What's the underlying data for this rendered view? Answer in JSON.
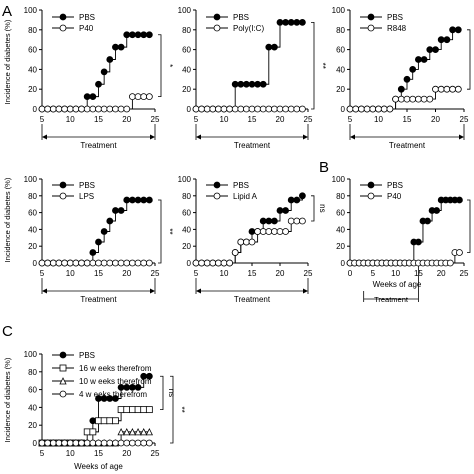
{
  "panel_letters": [
    "A",
    "B",
    "C"
  ],
  "shared": {
    "ylabel": "Incidence of diabetes (%)",
    "xlabel": "Weeks of age",
    "treatment_label": "Treatment",
    "y_ticks": [
      0,
      20,
      40,
      60,
      80,
      100
    ],
    "x_ticks": [
      5,
      10,
      15,
      20,
      25
    ],
    "x_ticks_B": [
      0,
      5,
      10,
      15,
      20,
      25
    ]
  },
  "chart_data": [
    {
      "type": "line",
      "panel": "A1",
      "xlim": [
        5,
        25
      ],
      "ylim": [
        0,
        100
      ],
      "xlabel": "Weeks of age",
      "ylabel": "Incidence of diabetes (%)",
      "series": [
        {
          "name": "PBS",
          "marker": "filled-circle",
          "x": [
            5,
            6,
            7,
            8,
            9,
            10,
            11,
            12,
            13,
            14,
            15,
            16,
            17,
            18,
            19,
            20,
            21,
            22,
            23,
            24
          ],
          "y": [
            0,
            0,
            0,
            0,
            0,
            0,
            0,
            0,
            12.5,
            12.5,
            25,
            37.5,
            50,
            62.5,
            62.5,
            75,
            75,
            75,
            75,
            75
          ]
        },
        {
          "name": "P40",
          "marker": "open-circle",
          "x": [
            5,
            6,
            7,
            8,
            9,
            10,
            11,
            12,
            13,
            14,
            15,
            16,
            17,
            18,
            19,
            20,
            21,
            22,
            23,
            24
          ],
          "y": [
            0,
            0,
            0,
            0,
            0,
            0,
            0,
            0,
            0,
            0,
            0,
            0,
            0,
            0,
            0,
            0,
            12.5,
            12.5,
            12.5,
            12.5
          ]
        }
      ],
      "significance": "*"
    },
    {
      "type": "line",
      "panel": "A2",
      "xlim": [
        5,
        25
      ],
      "ylim": [
        0,
        100
      ],
      "xlabel": "Weeks of age",
      "ylabel": "Incidence of diabetes (%)",
      "series": [
        {
          "name": "PBS",
          "marker": "filled-circle",
          "x": [
            5,
            6,
            7,
            8,
            9,
            10,
            11,
            12,
            13,
            14,
            15,
            16,
            17,
            18,
            19,
            20,
            21,
            22,
            23,
            24
          ],
          "y": [
            0,
            0,
            0,
            0,
            0,
            0,
            0,
            25,
            25,
            25,
            25,
            25,
            25,
            62.5,
            62.5,
            87.5,
            87.5,
            87.5,
            87.5,
            87.5
          ]
        },
        {
          "name": "Poly(I:C)",
          "marker": "open-circle",
          "x": [
            5,
            6,
            7,
            8,
            9,
            10,
            11,
            12,
            13,
            14,
            15,
            16,
            17,
            18,
            19,
            20,
            21,
            22,
            23,
            24
          ],
          "y": [
            0,
            0,
            0,
            0,
            0,
            0,
            0,
            0,
            0,
            0,
            0,
            0,
            0,
            0,
            0,
            0,
            0,
            0,
            0,
            0
          ]
        }
      ],
      "significance": "**"
    },
    {
      "type": "line",
      "panel": "A3",
      "xlim": [
        5,
        25
      ],
      "ylim": [
        0,
        100
      ],
      "xlabel": "Weeks of age",
      "ylabel": "Incidence of diabetes (%)",
      "series": [
        {
          "name": "PBS",
          "marker": "filled-circle",
          "x": [
            5,
            6,
            7,
            8,
            9,
            10,
            11,
            12,
            13,
            14,
            15,
            16,
            17,
            18,
            19,
            20,
            21,
            22,
            23,
            24
          ],
          "y": [
            0,
            0,
            0,
            0,
            0,
            0,
            0,
            0,
            10,
            20,
            30,
            40,
            50,
            50,
            60,
            60,
            70,
            70,
            80,
            80
          ]
        },
        {
          "name": "R848",
          "marker": "open-circle",
          "x": [
            5,
            6,
            7,
            8,
            9,
            10,
            11,
            12,
            13,
            14,
            15,
            16,
            17,
            18,
            19,
            20,
            21,
            22,
            23,
            24
          ],
          "y": [
            0,
            0,
            0,
            0,
            0,
            0,
            0,
            0,
            10,
            10,
            10,
            10,
            10,
            10,
            10,
            20,
            20,
            20,
            20,
            20
          ]
        }
      ],
      "significance": "*"
    },
    {
      "type": "line",
      "panel": "A4",
      "xlim": [
        5,
        25
      ],
      "ylim": [
        0,
        100
      ],
      "xlabel": "Weeks of age",
      "ylabel": "Incidence of diabetes (%)",
      "series": [
        {
          "name": "PBS",
          "marker": "filled-circle",
          "x": [
            5,
            6,
            7,
            8,
            9,
            10,
            11,
            12,
            13,
            14,
            15,
            16,
            17,
            18,
            19,
            20,
            21,
            22,
            23,
            24
          ],
          "y": [
            0,
            0,
            0,
            0,
            0,
            0,
            0,
            0,
            0,
            12.5,
            25,
            37.5,
            50,
            62.5,
            62.5,
            75,
            75,
            75,
            75,
            75
          ]
        },
        {
          "name": "LPS",
          "marker": "open-circle",
          "x": [
            5,
            6,
            7,
            8,
            9,
            10,
            11,
            12,
            13,
            14,
            15,
            16,
            17,
            18,
            19,
            20,
            21,
            22,
            23,
            24
          ],
          "y": [
            0,
            0,
            0,
            0,
            0,
            0,
            0,
            0,
            0,
            0,
            0,
            0,
            0,
            0,
            0,
            0,
            0,
            0,
            0,
            0
          ]
        }
      ],
      "significance": "**"
    },
    {
      "type": "line",
      "panel": "A5",
      "xlim": [
        5,
        25
      ],
      "ylim": [
        0,
        100
      ],
      "xlabel": "Weeks of age",
      "ylabel": "Incidence of diabetes (%)",
      "series": [
        {
          "name": "PBS",
          "marker": "filled-circle",
          "x": [
            5,
            6,
            7,
            8,
            9,
            10,
            11,
            12,
            13,
            14,
            15,
            16,
            17,
            18,
            19,
            20,
            21,
            22,
            23,
            24
          ],
          "y": [
            0,
            0,
            0,
            0,
            0,
            0,
            0,
            12.5,
            25,
            25,
            37.5,
            37.5,
            50,
            50,
            50,
            62.5,
            62.5,
            75,
            75,
            80
          ]
        },
        {
          "name": "Lipid A",
          "marker": "open-circle",
          "x": [
            5,
            6,
            7,
            8,
            9,
            10,
            11,
            12,
            13,
            14,
            15,
            16,
            17,
            18,
            19,
            20,
            21,
            22,
            23,
            24
          ],
          "y": [
            0,
            0,
            0,
            0,
            0,
            0,
            0,
            12.5,
            25,
            25,
            25,
            37.5,
            37.5,
            37.5,
            37.5,
            37.5,
            37.5,
            50,
            50,
            50
          ]
        }
      ],
      "significance": "ns"
    },
    {
      "type": "line",
      "panel": "B",
      "xlim": [
        0,
        25
      ],
      "ylim": [
        0,
        100
      ],
      "xlabel": "Weeks of age",
      "ylabel": "Incidence of diabetes (%)",
      "series": [
        {
          "name": "PBS",
          "marker": "filled-circle",
          "x": [
            0,
            1,
            2,
            3,
            4,
            5,
            6,
            7,
            8,
            9,
            10,
            11,
            12,
            13,
            14,
            15,
            16,
            17,
            18,
            19,
            20,
            21,
            22,
            23,
            24
          ],
          "y": [
            0,
            0,
            0,
            0,
            0,
            0,
            0,
            0,
            0,
            0,
            0,
            0,
            0,
            0,
            25,
            25,
            50,
            50,
            62.5,
            62.5,
            75,
            75,
            75,
            75,
            75
          ]
        },
        {
          "name": "P40",
          "marker": "open-circle",
          "x": [
            0,
            1,
            2,
            3,
            4,
            5,
            6,
            7,
            8,
            9,
            10,
            11,
            12,
            13,
            14,
            15,
            16,
            17,
            18,
            19,
            20,
            21,
            22,
            23,
            24
          ],
          "y": [
            0,
            0,
            0,
            0,
            0,
            0,
            0,
            0,
            0,
            0,
            0,
            0,
            0,
            0,
            0,
            0,
            0,
            0,
            0,
            0,
            0,
            0,
            0,
            12.5,
            12.5
          ]
        }
      ],
      "significance": "**"
    },
    {
      "type": "line",
      "panel": "C",
      "xlim": [
        5,
        25
      ],
      "ylim": [
        0,
        100
      ],
      "xlabel": "Weeks of age",
      "ylabel": "Incidence of diabetes (%)",
      "series": [
        {
          "name": "PBS",
          "marker": "filled-circle",
          "x": [
            5,
            6,
            7,
            8,
            9,
            10,
            11,
            12,
            13,
            14,
            15,
            16,
            17,
            18,
            19,
            20,
            21,
            22,
            23,
            24
          ],
          "y": [
            0,
            0,
            0,
            0,
            0,
            0,
            0,
            0,
            0,
            25,
            50,
            50,
            50,
            50,
            62.5,
            62.5,
            62.5,
            62.5,
            75,
            75
          ]
        },
        {
          "name": "16 w eeks therefrom",
          "marker": "open-square",
          "x": [
            5,
            6,
            7,
            8,
            9,
            10,
            11,
            12,
            13,
            14,
            15,
            16,
            17,
            18,
            19,
            20,
            21,
            22,
            23,
            24
          ],
          "y": [
            0,
            0,
            0,
            0,
            0,
            0,
            0,
            0,
            12.5,
            12.5,
            25,
            25,
            25,
            25,
            37.5,
            37.5,
            37.5,
            37.5,
            37.5,
            37.5
          ]
        },
        {
          "name": "10 w eeks therefrom",
          "marker": "open-triangle",
          "x": [
            5,
            6,
            7,
            8,
            9,
            10,
            11,
            12,
            13,
            14,
            15,
            16,
            17,
            18,
            19,
            20,
            21,
            22,
            23,
            24
          ],
          "y": [
            0,
            0,
            0,
            0,
            0,
            0,
            0,
            0,
            0,
            0,
            0,
            0,
            0,
            0,
            12.5,
            12.5,
            12.5,
            12.5,
            12.5,
            12.5
          ]
        },
        {
          "name": "4 w eeks therefrom",
          "marker": "open-circle",
          "x": [
            5,
            6,
            7,
            8,
            9,
            10,
            11,
            12,
            13,
            14,
            15,
            16,
            17,
            18,
            19,
            20,
            21,
            22,
            23,
            24
          ],
          "y": [
            0,
            0,
            0,
            0,
            0,
            0,
            0,
            0,
            0,
            0,
            0,
            0,
            0,
            0,
            0,
            0,
            0,
            0,
            0,
            0
          ]
        }
      ],
      "significance": [
        "ns",
        "**"
      ]
    }
  ]
}
